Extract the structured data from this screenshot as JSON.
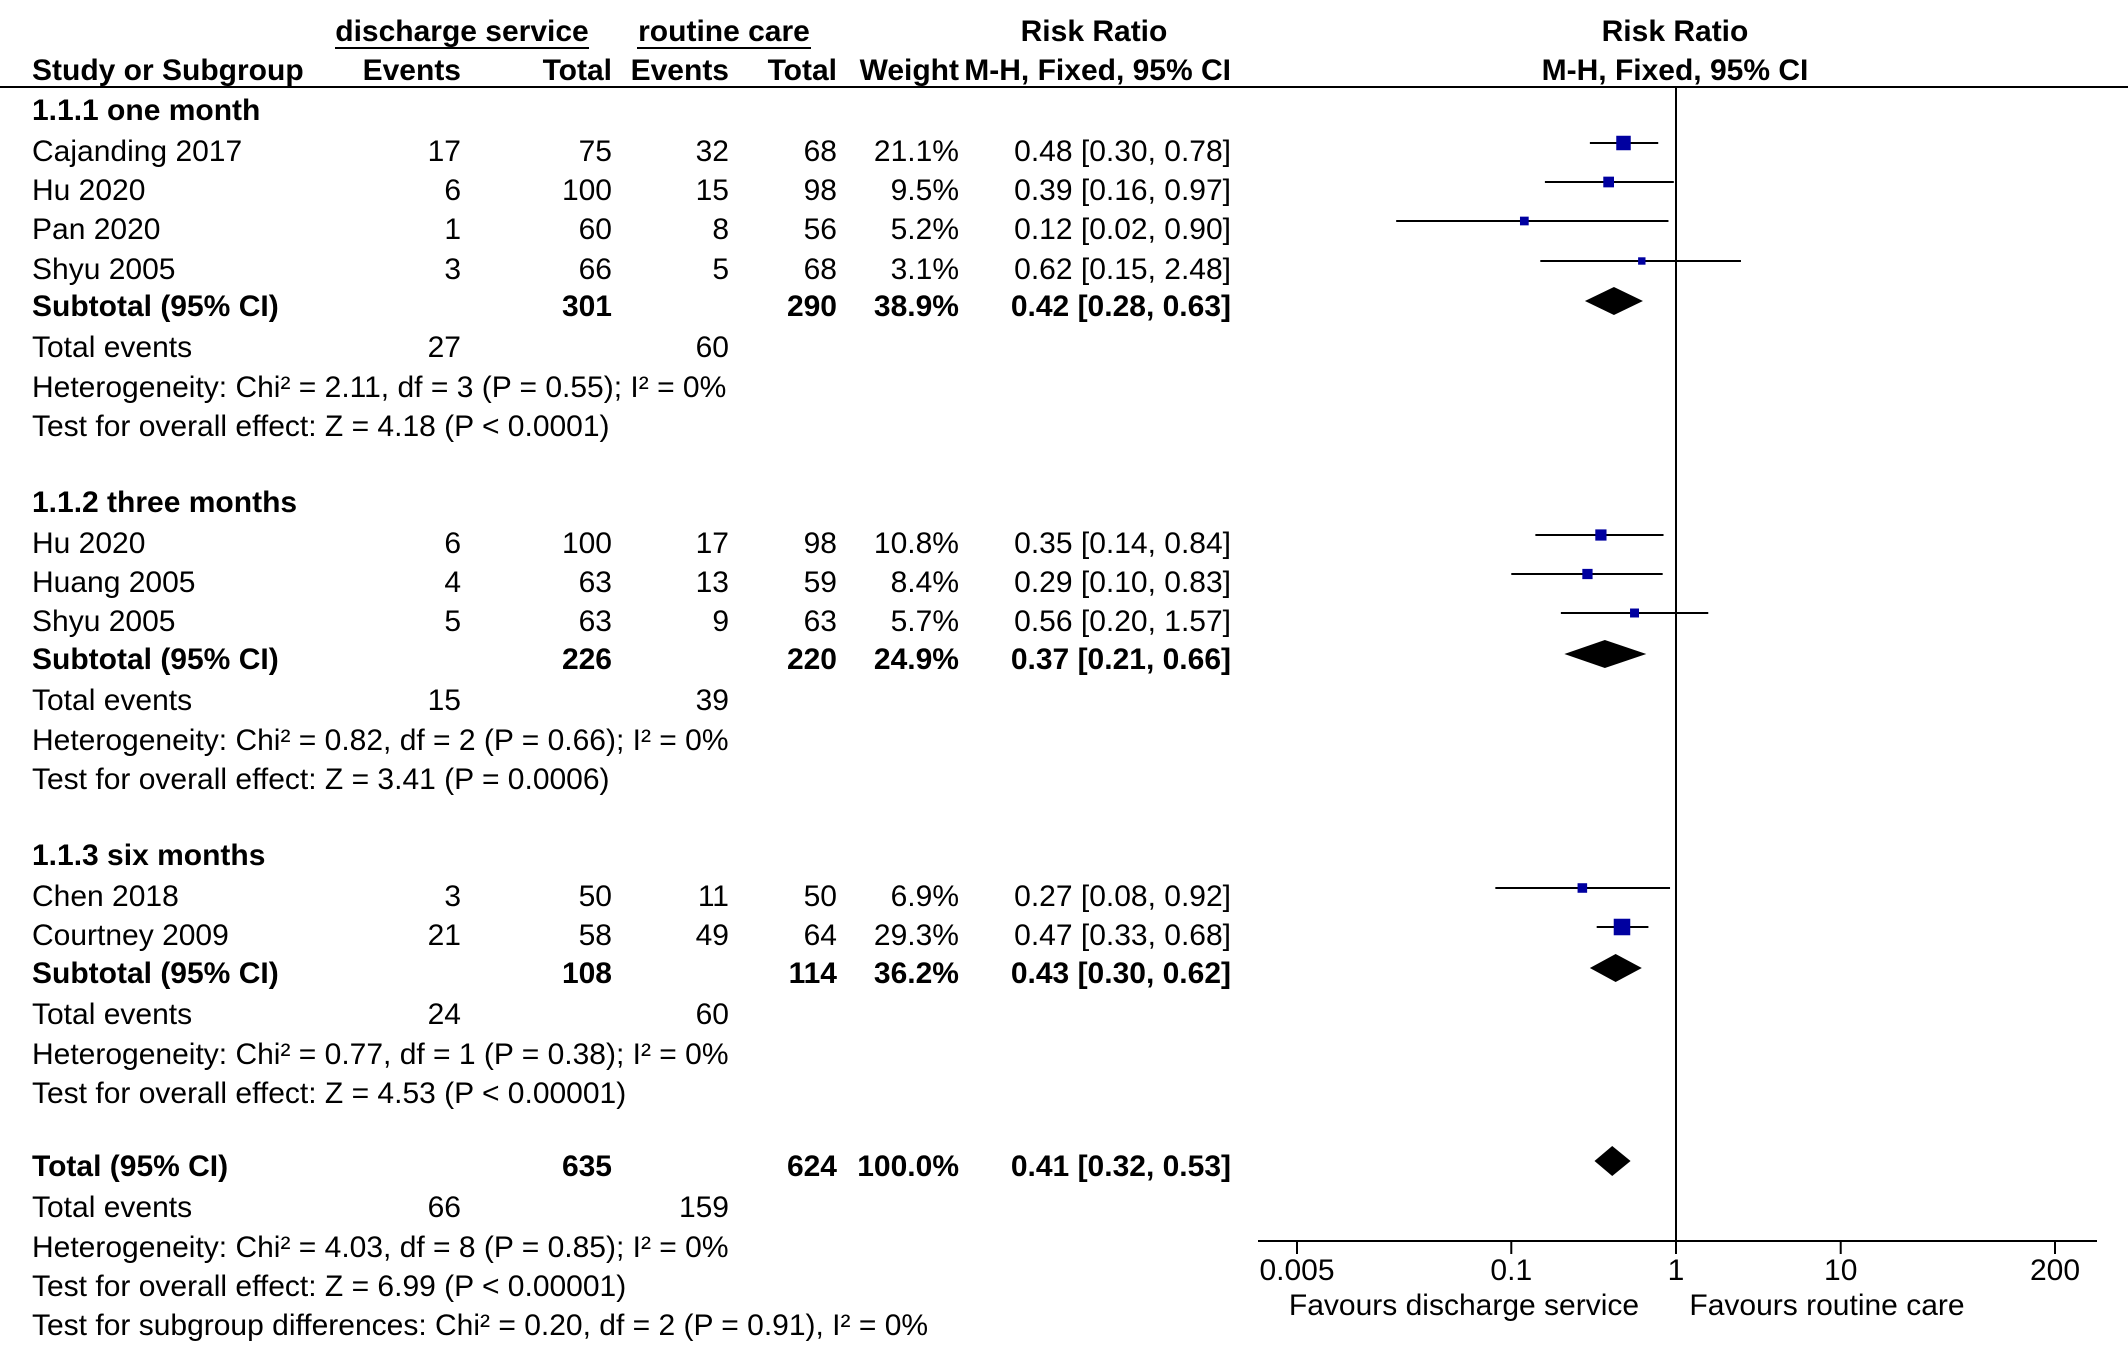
{
  "header": {
    "group1": "discharge service",
    "group2": "routine care",
    "rr_title": "Risk Ratio",
    "plot_title": "Risk Ratio",
    "col_study": "Study or Subgroup",
    "col_events1": "Events",
    "col_total1": "Total",
    "col_events2": "Events",
    "col_total2": "Total",
    "col_weight": "Weight",
    "col_method": "M-H, Fixed, 95% CI",
    "plot_method": "M-H, Fixed, 95% CI"
  },
  "subgroups": [
    {
      "title": "1.1.1 one month",
      "studies": [
        {
          "name": "Cajanding 2017",
          "e1": "17",
          "t1": "75",
          "e2": "32",
          "t2": "68",
          "w": "21.1%",
          "ci": "0.48 [0.30, 0.78]"
        },
        {
          "name": "Hu 2020",
          "e1": "6",
          "t1": "100",
          "e2": "15",
          "t2": "98",
          "w": "9.5%",
          "ci": "0.39 [0.16, 0.97]"
        },
        {
          "name": "Pan 2020",
          "e1": "1",
          "t1": "60",
          "e2": "8",
          "t2": "56",
          "w": "5.2%",
          "ci": "0.12 [0.02, 0.90]"
        },
        {
          "name": "Shyu 2005",
          "e1": "3",
          "t1": "66",
          "e2": "5",
          "t2": "68",
          "w": "3.1%",
          "ci": "0.62 [0.15, 2.48]"
        }
      ],
      "subtotal": {
        "label": "Subtotal (95% CI)",
        "t1": "301",
        "t2": "290",
        "w": "38.9%",
        "ci": "0.42 [0.28, 0.63]"
      },
      "events": {
        "label": "Total events",
        "e1": "27",
        "e2": "60"
      },
      "heterogeneity": "Heterogeneity: Chi² = 2.11, df = 3 (P = 0.55); I² = 0%",
      "overall": "Test for overall effect: Z = 4.18 (P < 0.0001)"
    },
    {
      "title": "1.1.2 three months",
      "studies": [
        {
          "name": "Hu 2020",
          "e1": "6",
          "t1": "100",
          "e2": "17",
          "t2": "98",
          "w": "10.8%",
          "ci": "0.35 [0.14, 0.84]"
        },
        {
          "name": "Huang 2005",
          "e1": "4",
          "t1": "63",
          "e2": "13",
          "t2": "59",
          "w": "8.4%",
          "ci": "0.29 [0.10, 0.83]"
        },
        {
          "name": "Shyu 2005",
          "e1": "5",
          "t1": "63",
          "e2": "9",
          "t2": "63",
          "w": "5.7%",
          "ci": "0.56 [0.20, 1.57]"
        }
      ],
      "subtotal": {
        "label": "Subtotal (95% CI)",
        "t1": "226",
        "t2": "220",
        "w": "24.9%",
        "ci": "0.37 [0.21, 0.66]"
      },
      "events": {
        "label": "Total events",
        "e1": "15",
        "e2": "39"
      },
      "heterogeneity": "Heterogeneity: Chi² = 0.82, df = 2 (P = 0.66); I² = 0%",
      "overall": "Test for overall effect: Z = 3.41 (P = 0.0006)"
    },
    {
      "title": "1.1.3 six months",
      "studies": [
        {
          "name": "Chen 2018",
          "e1": "3",
          "t1": "50",
          "e2": "11",
          "t2": "50",
          "w": "6.9%",
          "ci": "0.27 [0.08, 0.92]"
        },
        {
          "name": "Courtney 2009",
          "e1": "21",
          "t1": "58",
          "e2": "49",
          "t2": "64",
          "w": "29.3%",
          "ci": "0.47 [0.33, 0.68]"
        }
      ],
      "subtotal": {
        "label": "Subtotal (95% CI)",
        "t1": "108",
        "t2": "114",
        "w": "36.2%",
        "ci": "0.43 [0.30, 0.62]"
      },
      "events": {
        "label": "Total events",
        "e1": "24",
        "e2": "60"
      },
      "heterogeneity": "Heterogeneity: Chi² = 0.77, df = 1 (P = 0.38); I² = 0%",
      "overall": "Test for overall effect: Z = 4.53 (P < 0.00001)"
    }
  ],
  "total": {
    "label": "Total (95% CI)",
    "t1": "635",
    "t2": "624",
    "w": "100.0%",
    "ci": "0.41 [0.32, 0.53]",
    "events": {
      "label": "Total events",
      "e1": "66",
      "e2": "159"
    },
    "heterogeneity": "Heterogeneity: Chi² = 4.03, df = 8 (P = 0.85); I² = 0%",
    "overall": "Test for overall effect: Z = 6.99 (P < 0.00001)",
    "subgroup_diff": "Test for subgroup differences: Chi² = 0.20, df = 2 (P = 0.91), I² = 0%"
  },
  "axis": {
    "ticks": [
      "0.005",
      "0.1",
      "1",
      "10",
      "200"
    ],
    "left_label": "Favours discharge service",
    "right_label": "Favours routine care"
  },
  "colors": {
    "study_marker": "#0000a0",
    "diamond": "#000000",
    "line": "#000000"
  },
  "chart_data": {
    "type": "forest",
    "scale": "log",
    "xlim": [
      0.005,
      200
    ],
    "null_value": 1,
    "studies": [
      {
        "group": "1.1.1 one month",
        "name": "Cajanding 2017",
        "rr": 0.48,
        "lo": 0.3,
        "hi": 0.78,
        "weight": 21.1
      },
      {
        "group": "1.1.1 one month",
        "name": "Hu 2020",
        "rr": 0.39,
        "lo": 0.16,
        "hi": 0.97,
        "weight": 9.5
      },
      {
        "group": "1.1.1 one month",
        "name": "Pan 2020",
        "rr": 0.12,
        "lo": 0.02,
        "hi": 0.9,
        "weight": 5.2
      },
      {
        "group": "1.1.1 one month",
        "name": "Shyu 2005",
        "rr": 0.62,
        "lo": 0.15,
        "hi": 2.48,
        "weight": 3.1
      },
      {
        "group": "1.1.2 three months",
        "name": "Hu 2020",
        "rr": 0.35,
        "lo": 0.14,
        "hi": 0.84,
        "weight": 10.8
      },
      {
        "group": "1.1.2 three months",
        "name": "Huang 2005",
        "rr": 0.29,
        "lo": 0.1,
        "hi": 0.83,
        "weight": 8.4
      },
      {
        "group": "1.1.2 three months",
        "name": "Shyu 2005",
        "rr": 0.56,
        "lo": 0.2,
        "hi": 1.57,
        "weight": 5.7
      },
      {
        "group": "1.1.3 six months",
        "name": "Chen 2018",
        "rr": 0.27,
        "lo": 0.08,
        "hi": 0.92,
        "weight": 6.9
      },
      {
        "group": "1.1.3 six months",
        "name": "Courtney 2009",
        "rr": 0.47,
        "lo": 0.33,
        "hi": 0.68,
        "weight": 29.3
      }
    ],
    "summaries": [
      {
        "group": "1.1.1 one month",
        "name": "Subtotal (95% CI)",
        "rr": 0.42,
        "lo": 0.28,
        "hi": 0.63
      },
      {
        "group": "1.1.2 three months",
        "name": "Subtotal (95% CI)",
        "rr": 0.37,
        "lo": 0.21,
        "hi": 0.66
      },
      {
        "group": "1.1.3 six months",
        "name": "Subtotal (95% CI)",
        "rr": 0.43,
        "lo": 0.3,
        "hi": 0.62
      },
      {
        "group": "overall",
        "name": "Total (95% CI)",
        "rr": 0.41,
        "lo": 0.32,
        "hi": 0.53
      }
    ],
    "xticks": [
      0.005,
      0.1,
      1,
      10,
      200
    ]
  }
}
